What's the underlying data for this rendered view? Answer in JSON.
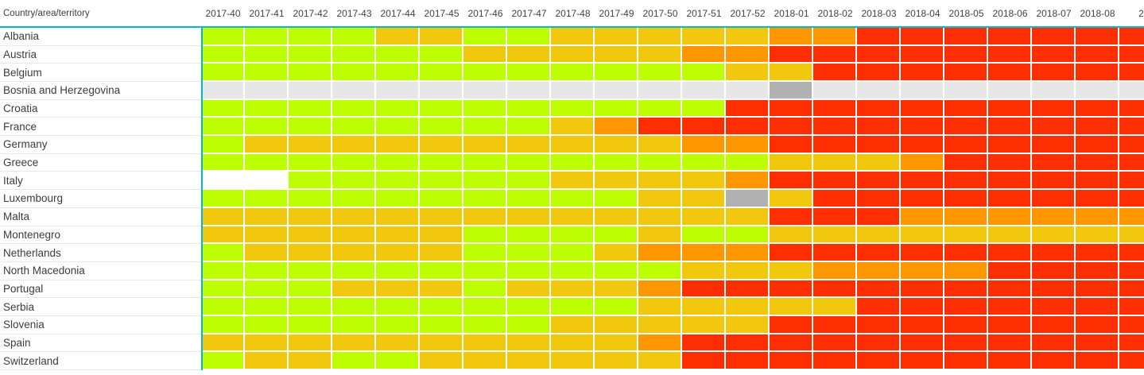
{
  "header": {
    "row_label": "Country/area/territory"
  },
  "colors": {
    "accent_line": "#00B8D4",
    "grid_line": "#FFFFFF",
    "header_text": "#424242",
    "label_text": "#3B3B3B",
    "row_separator": "#E4EAEC",
    "palette": {
      "G": "#BDFF00",
      "Y": "#F2C80F",
      "O": "#FF9800",
      "R": "#FD2E01",
      "E": "#E7E7E7",
      "D": "#B1B1B1",
      "W": "#FFFFFF"
    }
  },
  "chart_data": {
    "type": "heatmap",
    "title": "",
    "xlabel": "",
    "ylabel": "Country/area/territory",
    "grid": true,
    "legend_position": "none",
    "color_scale_order": [
      "G",
      "Y",
      "O",
      "R"
    ],
    "missing_data_codes": {
      "E": "light-gray",
      "D": "dark-gray",
      "W": "blank"
    },
    "x": [
      "2017-40",
      "2017-41",
      "2017-42",
      "2017-43",
      "2017-44",
      "2017-45",
      "2017-46",
      "2017-47",
      "2017-48",
      "2017-49",
      "2017-50",
      "2017-51",
      "2017-52",
      "2018-01",
      "2018-02",
      "2018-03",
      "2018-04",
      "2018-05",
      "2018-06",
      "2018-07",
      "2018-08",
      "2"
    ],
    "rows": [
      {
        "name": "Albania",
        "cells": [
          "G",
          "G",
          "G",
          "G",
          "Y",
          "Y",
          "G",
          "G",
          "Y",
          "Y",
          "Y",
          "Y",
          "Y",
          "O",
          "O",
          "R",
          "R",
          "R",
          "R",
          "R",
          "R",
          "R"
        ]
      },
      {
        "name": "Austria",
        "cells": [
          "G",
          "G",
          "G",
          "G",
          "G",
          "G",
          "Y",
          "Y",
          "Y",
          "Y",
          "Y",
          "O",
          "O",
          "R",
          "R",
          "R",
          "R",
          "R",
          "R",
          "R",
          "R",
          "R"
        ]
      },
      {
        "name": "Belgium",
        "cells": [
          "G",
          "G",
          "G",
          "G",
          "G",
          "G",
          "G",
          "G",
          "G",
          "G",
          "G",
          "G",
          "Y",
          "Y",
          "R",
          "R",
          "R",
          "R",
          "R",
          "R",
          "R",
          "R"
        ]
      },
      {
        "name": "Bosnia and Herzegovina",
        "cells": [
          "E",
          "E",
          "E",
          "E",
          "E",
          "E",
          "E",
          "E",
          "E",
          "E",
          "E",
          "E",
          "E",
          "D",
          "E",
          "E",
          "E",
          "E",
          "E",
          "E",
          "E",
          "E"
        ]
      },
      {
        "name": "Croatia",
        "cells": [
          "G",
          "G",
          "G",
          "G",
          "G",
          "G",
          "G",
          "G",
          "G",
          "G",
          "G",
          "G",
          "R",
          "R",
          "R",
          "R",
          "R",
          "R",
          "R",
          "R",
          "R",
          "R"
        ]
      },
      {
        "name": "France",
        "cells": [
          "G",
          "G",
          "G",
          "G",
          "G",
          "G",
          "G",
          "G",
          "Y",
          "O",
          "R",
          "R",
          "R",
          "R",
          "R",
          "R",
          "R",
          "R",
          "R",
          "R",
          "R",
          "R"
        ]
      },
      {
        "name": "Germany",
        "cells": [
          "G",
          "Y",
          "Y",
          "Y",
          "Y",
          "Y",
          "Y",
          "Y",
          "Y",
          "Y",
          "Y",
          "O",
          "O",
          "R",
          "R",
          "R",
          "R",
          "R",
          "R",
          "R",
          "R",
          "R"
        ]
      },
      {
        "name": "Greece",
        "cells": [
          "G",
          "G",
          "G",
          "G",
          "G",
          "G",
          "G",
          "G",
          "G",
          "G",
          "G",
          "G",
          "G",
          "Y",
          "Y",
          "Y",
          "O",
          "R",
          "R",
          "R",
          "R",
          "R"
        ]
      },
      {
        "name": "Italy",
        "cells": [
          "W",
          "W",
          "G",
          "G",
          "G",
          "G",
          "G",
          "G",
          "Y",
          "Y",
          "Y",
          "Y",
          "O",
          "R",
          "R",
          "R",
          "R",
          "R",
          "R",
          "R",
          "R",
          "R"
        ]
      },
      {
        "name": "Luxembourg",
        "cells": [
          "G",
          "G",
          "G",
          "G",
          "G",
          "G",
          "G",
          "G",
          "G",
          "G",
          "Y",
          "Y",
          "D",
          "Y",
          "R",
          "R",
          "R",
          "R",
          "R",
          "R",
          "R",
          "R"
        ]
      },
      {
        "name": "Malta",
        "cells": [
          "Y",
          "Y",
          "Y",
          "Y",
          "Y",
          "Y",
          "Y",
          "Y",
          "Y",
          "Y",
          "Y",
          "Y",
          "Y",
          "R",
          "R",
          "R",
          "O",
          "O",
          "O",
          "O",
          "O",
          "O"
        ]
      },
      {
        "name": "Montenegro",
        "cells": [
          "Y",
          "Y",
          "Y",
          "Y",
          "Y",
          "Y",
          "G",
          "G",
          "G",
          "G",
          "Y",
          "G",
          "G",
          "Y",
          "Y",
          "Y",
          "Y",
          "Y",
          "Y",
          "Y",
          "Y",
          "Y"
        ]
      },
      {
        "name": "Netherlands",
        "cells": [
          "G",
          "Y",
          "Y",
          "Y",
          "Y",
          "Y",
          "G",
          "G",
          "G",
          "Y",
          "O",
          "O",
          "O",
          "R",
          "R",
          "R",
          "R",
          "R",
          "R",
          "R",
          "R",
          "R"
        ]
      },
      {
        "name": "North Macedonia",
        "cells": [
          "G",
          "G",
          "G",
          "G",
          "G",
          "G",
          "G",
          "G",
          "G",
          "G",
          "G",
          "Y",
          "Y",
          "Y",
          "O",
          "O",
          "O",
          "O",
          "R",
          "R",
          "R",
          "R"
        ]
      },
      {
        "name": "Portugal",
        "cells": [
          "G",
          "G",
          "G",
          "Y",
          "Y",
          "Y",
          "G",
          "Y",
          "Y",
          "Y",
          "O",
          "R",
          "R",
          "R",
          "R",
          "R",
          "R",
          "R",
          "R",
          "R",
          "R",
          "R"
        ]
      },
      {
        "name": "Serbia",
        "cells": [
          "G",
          "G",
          "G",
          "G",
          "G",
          "G",
          "G",
          "G",
          "G",
          "G",
          "Y",
          "Y",
          "Y",
          "Y",
          "Y",
          "R",
          "R",
          "R",
          "R",
          "R",
          "R",
          "R"
        ]
      },
      {
        "name": "Slovenia",
        "cells": [
          "G",
          "G",
          "G",
          "G",
          "G",
          "G",
          "G",
          "G",
          "Y",
          "Y",
          "Y",
          "Y",
          "Y",
          "R",
          "R",
          "R",
          "R",
          "R",
          "R",
          "R",
          "R",
          "R"
        ]
      },
      {
        "name": "Spain",
        "cells": [
          "Y",
          "Y",
          "Y",
          "Y",
          "Y",
          "Y",
          "Y",
          "Y",
          "Y",
          "Y",
          "O",
          "R",
          "R",
          "R",
          "R",
          "R",
          "R",
          "R",
          "R",
          "R",
          "R",
          "R"
        ]
      },
      {
        "name": "Switzerland",
        "cells": [
          "G",
          "Y",
          "Y",
          "G",
          "G",
          "Y",
          "Y",
          "Y",
          "Y",
          "Y",
          "Y",
          "R",
          "R",
          "R",
          "R",
          "R",
          "R",
          "R",
          "R",
          "R",
          "R",
          "R"
        ]
      }
    ]
  }
}
